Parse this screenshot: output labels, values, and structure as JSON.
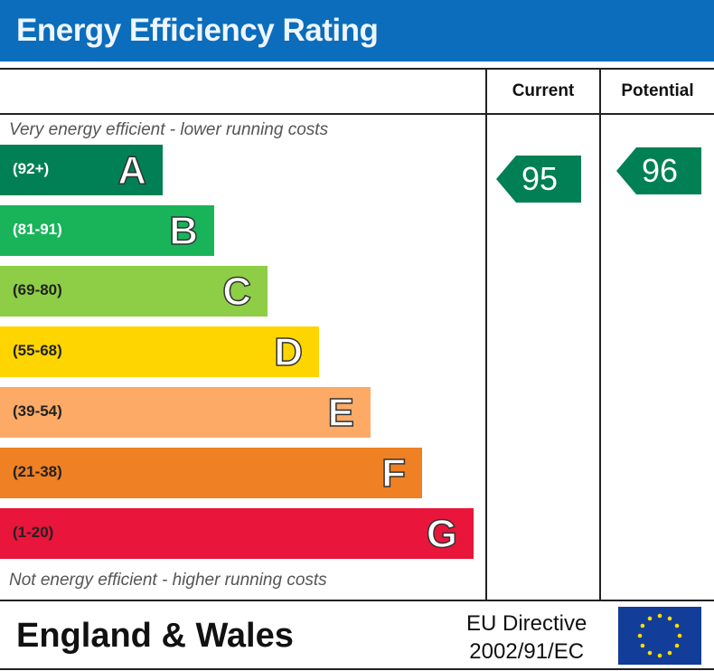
{
  "chart_data": {
    "type": "table",
    "title": "Energy Efficiency Rating",
    "columns": [
      "Current",
      "Potential"
    ],
    "top_note": "Very energy efficient - lower running costs",
    "bottom_note": "Not energy efficient - higher running costs",
    "bands": [
      {
        "letter": "A",
        "range": "(92+)",
        "color": "#008054",
        "range_color": "#ffffff"
      },
      {
        "letter": "B",
        "range": "(81-91)",
        "color": "#19b459",
        "range_color": "#ffffff"
      },
      {
        "letter": "C",
        "range": "(69-80)",
        "color": "#8dce46",
        "range_color": "#222222"
      },
      {
        "letter": "D",
        "range": "(55-68)",
        "color": "#ffd500",
        "range_color": "#222222"
      },
      {
        "letter": "E",
        "range": "(39-54)",
        "color": "#fcaa65",
        "range_color": "#222222"
      },
      {
        "letter": "F",
        "range": "(21-38)",
        "color": "#ef8023",
        "range_color": "#222222"
      },
      {
        "letter": "G",
        "range": "(1-20)",
        "color": "#e9153b",
        "range_color": "#222222"
      }
    ],
    "current": {
      "value": "95",
      "band": "A",
      "color": "#008054"
    },
    "potential": {
      "value": "96",
      "band": "A",
      "color": "#008054"
    }
  },
  "footer": {
    "region": "England & Wales",
    "directive_line1": "EU Directive",
    "directive_line2": "2002/91/EC",
    "flag_icon": "eu-flag-icon"
  }
}
